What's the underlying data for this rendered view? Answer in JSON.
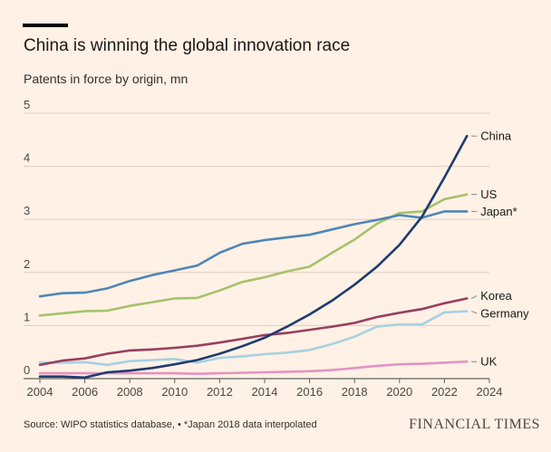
{
  "header": {
    "title": "China is winning the global innovation race",
    "subtitle": "Patents in force by origin, mn"
  },
  "footer": {
    "source": "Source: WIPO statistics database, • *Japan 2018 data interpolated",
    "brand": "FINANCIAL TIMES"
  },
  "chart_data": {
    "type": "line",
    "title": "China is winning the global innovation race",
    "ylabel": "Patents in force by origin, mn",
    "xlim": [
      2004,
      2024
    ],
    "ylim": [
      0,
      5
    ],
    "xticks": [
      2004,
      2006,
      2008,
      2010,
      2012,
      2014,
      2016,
      2018,
      2020,
      2022,
      2024
    ],
    "yticks": [
      0,
      1,
      2,
      3,
      4,
      5
    ],
    "grid": true,
    "legend": "direct labels at right end of lines",
    "x": [
      2004,
      2005,
      2006,
      2007,
      2008,
      2009,
      2010,
      2011,
      2012,
      2013,
      2014,
      2015,
      2016,
      2017,
      2018,
      2019,
      2020,
      2021,
      2022,
      2023
    ],
    "series": [
      {
        "name": "China",
        "color": "#1f3b6e",
        "values": [
          0.04,
          0.04,
          0.02,
          0.12,
          0.15,
          0.2,
          0.27,
          0.35,
          0.47,
          0.61,
          0.77,
          0.98,
          1.21,
          1.47,
          1.77,
          2.11,
          2.52,
          3.05,
          3.79,
          4.57
        ]
      },
      {
        "name": "US",
        "color": "#a5c26b",
        "values": [
          1.19,
          1.23,
          1.27,
          1.28,
          1.37,
          1.44,
          1.51,
          1.52,
          1.66,
          1.82,
          1.91,
          2.02,
          2.11,
          2.37,
          2.62,
          2.92,
          3.12,
          3.15,
          3.38,
          3.47
        ]
      },
      {
        "name": "Japan*",
        "color": "#4f86b8",
        "values": [
          1.55,
          1.61,
          1.62,
          1.7,
          1.84,
          1.95,
          2.04,
          2.13,
          2.37,
          2.54,
          2.61,
          2.66,
          2.71,
          2.81,
          2.91,
          2.99,
          3.08,
          3.03,
          3.15,
          3.15
        ]
      },
      {
        "name": "Korea",
        "color": "#983e5e",
        "values": [
          0.26,
          0.34,
          0.38,
          0.47,
          0.53,
          0.55,
          0.58,
          0.62,
          0.68,
          0.75,
          0.82,
          0.86,
          0.92,
          0.98,
          1.05,
          1.16,
          1.24,
          1.31,
          1.42,
          1.51
        ]
      },
      {
        "name": "Germany",
        "color": "#a7d1e2",
        "values": [
          0.3,
          0.3,
          0.31,
          0.26,
          0.33,
          0.35,
          0.37,
          0.3,
          0.39,
          0.42,
          0.46,
          0.49,
          0.54,
          0.65,
          0.79,
          0.98,
          1.02,
          1.02,
          1.25,
          1.27
        ]
      },
      {
        "name": "UK",
        "color": "#e393c2",
        "values": [
          0.1,
          0.1,
          0.1,
          0.1,
          0.1,
          0.1,
          0.1,
          0.09,
          0.1,
          0.11,
          0.12,
          0.13,
          0.14,
          0.16,
          0.2,
          0.24,
          0.27,
          0.28,
          0.3,
          0.32
        ]
      }
    ],
    "labels": [
      {
        "text": "China",
        "y": 4.57
      },
      {
        "text": "US",
        "y": 3.47
      },
      {
        "text": "Japan*",
        "y": 3.15
      },
      {
        "text": "Korea",
        "y": 1.56
      },
      {
        "text": "Germany",
        "y": 1.23
      },
      {
        "text": "UK",
        "y": 0.32
      }
    ]
  }
}
